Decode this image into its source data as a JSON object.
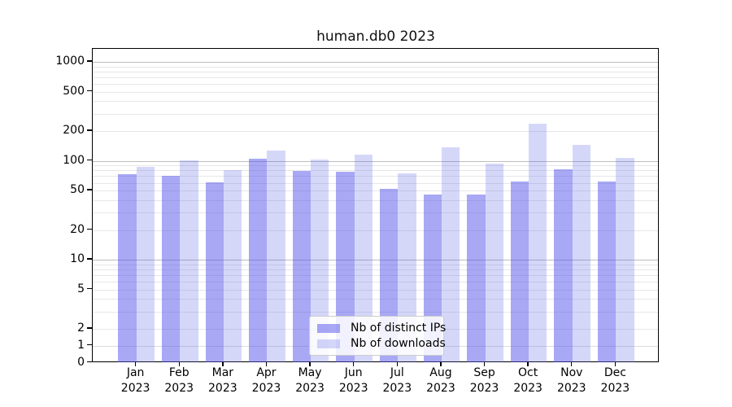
{
  "chart": {
    "title": "human.db0 2023",
    "chart_data": {
      "type": "bar",
      "categories": [
        "Jan",
        "Feb",
        "Mar",
        "Apr",
        "May",
        "Jun",
        "Jul",
        "Aug",
        "Sep",
        "Oct",
        "Nov",
        "Dec"
      ],
      "category_year": "2023",
      "series": [
        {
          "name": "Nb of distinct IPs",
          "color": "rgba(82,82,236,0.5)",
          "values": [
            73,
            71,
            61,
            105,
            79,
            78,
            52,
            46,
            46,
            62,
            82,
            62
          ]
        },
        {
          "name": "Nb of downloads",
          "color": "rgba(88,95,230,0.25)",
          "values": [
            87,
            101,
            81,
            127,
            103,
            116,
            75,
            138,
            93,
            237,
            145,
            107
          ]
        }
      ],
      "yaxis": {
        "scale": "symlog",
        "tick_labels": [
          "1000",
          "500",
          "200",
          "100",
          "50",
          "20",
          "10",
          "5",
          "2",
          "1",
          "0"
        ],
        "tick_values": [
          1000,
          500,
          200,
          100,
          50,
          20,
          10,
          5,
          2,
          1,
          0
        ],
        "ylim": [
          0,
          1340
        ]
      },
      "xlabel": "",
      "ylabel": "",
      "grid": true,
      "legend_position": "lower center"
    }
  }
}
